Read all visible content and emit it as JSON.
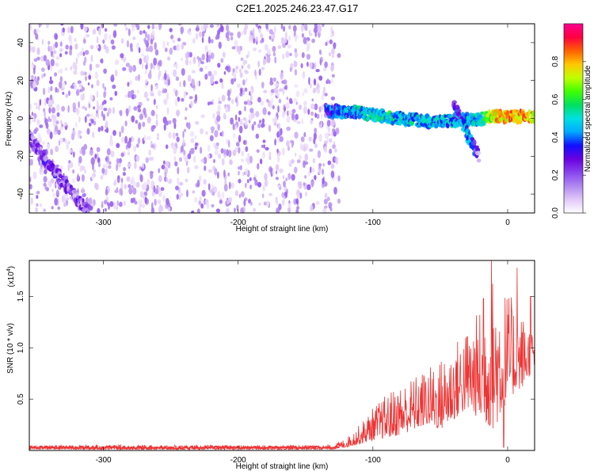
{
  "figure_title": "C2E1.2025.246.23.47.G17",
  "colors": {
    "snr_line": "#ee3333",
    "colorbar_stops": [
      "#ffffff",
      "#e0c8f8",
      "#b088f0",
      "#8844ee",
      "#6a00e0",
      "#1010ff",
      "#00aaff",
      "#00e0e0",
      "#00e060",
      "#40ff00",
      "#c0ff00",
      "#ffc800",
      "#ff6000",
      "#ff0040",
      "#ff0090"
    ]
  },
  "chart_data": [
    {
      "type": "heatmap",
      "title": "",
      "xlabel": "Height of straight line (km)",
      "ylabel": "Frequency (Hz)",
      "xlim": [
        -355,
        20
      ],
      "ylim": [
        -50,
        50
      ],
      "xticks": [
        -300,
        -200,
        -100,
        0
      ],
      "xtick_labels": [
        "-300",
        "-200",
        "-100",
        "0"
      ],
      "yticks": [
        -40,
        -20,
        0,
        20,
        40
      ],
      "ytick_labels": [
        "-40",
        "-20",
        "0",
        "20",
        "40"
      ],
      "noise_region": [
        -355,
        -125
      ],
      "signal_tracks": [
        {
          "name": "main-doppler-track",
          "x": [
            -135,
            -110,
            -90,
            -70,
            -50,
            -35,
            -20,
            -10,
            0,
            20
          ],
          "y": [
            4,
            3,
            1,
            -1,
            -2,
            -1,
            0,
            1,
            1,
            1
          ],
          "amplitude": [
            0.35,
            0.45,
            0.5,
            0.45,
            0.45,
            0.4,
            0.5,
            0.75,
            0.8,
            0.8
          ]
        },
        {
          "name": "lower-branch-track",
          "x": [
            -40,
            -35,
            -30,
            -27,
            -25,
            -22
          ],
          "y": [
            6,
            0,
            -8,
            -12,
            -14,
            -20
          ],
          "amplitude": [
            0.3,
            0.35,
            0.45,
            0.4,
            0.35,
            0.2
          ]
        },
        {
          "name": "diagonal-noise-track",
          "x": [
            -355,
            -340,
            -325,
            -310
          ],
          "y": [
            -10,
            -25,
            -38,
            -50
          ],
          "amplitude": [
            0.2,
            0.22,
            0.2,
            0.18
          ]
        }
      ],
      "colorbar": {
        "label": "Normalized spectral amplitude",
        "range": [
          0,
          1
        ],
        "ticks": [
          0.0,
          0.2,
          0.4,
          0.6,
          0.8
        ],
        "tick_labels": [
          "0.0",
          "0.2",
          "0.4",
          "0.6",
          "0.8"
        ]
      }
    },
    {
      "type": "line",
      "title": "",
      "xlabel": "Height of straight line (km)",
      "ylabel": "SNR (10 * v/v)",
      "y_multiplier_label": "(x10",
      "y_multiplier_exponent": "4",
      "y_multiplier_close": ")",
      "xlim": [
        -355,
        20
      ],
      "ylim": [
        0,
        18500
      ],
      "xticks": [
        -300,
        -200,
        -100,
        0
      ],
      "xtick_labels": [
        "-300",
        "-200",
        "-100",
        "0"
      ],
      "yticks": [
        5000,
        10000,
        15000
      ],
      "ytick_labels": [
        "0.5",
        "1.0",
        "1.5"
      ],
      "series": [
        {
          "name": "SNR",
          "envelope_x": [
            -355,
            -300,
            -200,
            -130,
            -120,
            -110,
            -100,
            -90,
            -80,
            -70,
            -60,
            -50,
            -40,
            -30,
            -20,
            -10,
            0,
            10,
            20
          ],
          "envelope_max": [
            500,
            550,
            500,
            550,
            1200,
            2500,
            4200,
            5500,
            6500,
            7200,
            8000,
            9000,
            10500,
            12000,
            14000,
            17500,
            15500,
            13500,
            11500
          ],
          "envelope_min": [
            100,
            100,
            80,
            100,
            300,
            600,
            1000,
            1200,
            1500,
            2000,
            2500,
            2000,
            3000,
            4000,
            3000,
            2000,
            5000,
            6000,
            8000
          ],
          "peaks": [
            {
              "x": -12,
              "y": 18500
            },
            {
              "x": 7,
              "y": 17800
            },
            {
              "x": -18,
              "y": 14800
            },
            {
              "x": 17,
              "y": 15000
            },
            {
              "x": -3,
              "y": 300
            }
          ]
        }
      ]
    }
  ]
}
